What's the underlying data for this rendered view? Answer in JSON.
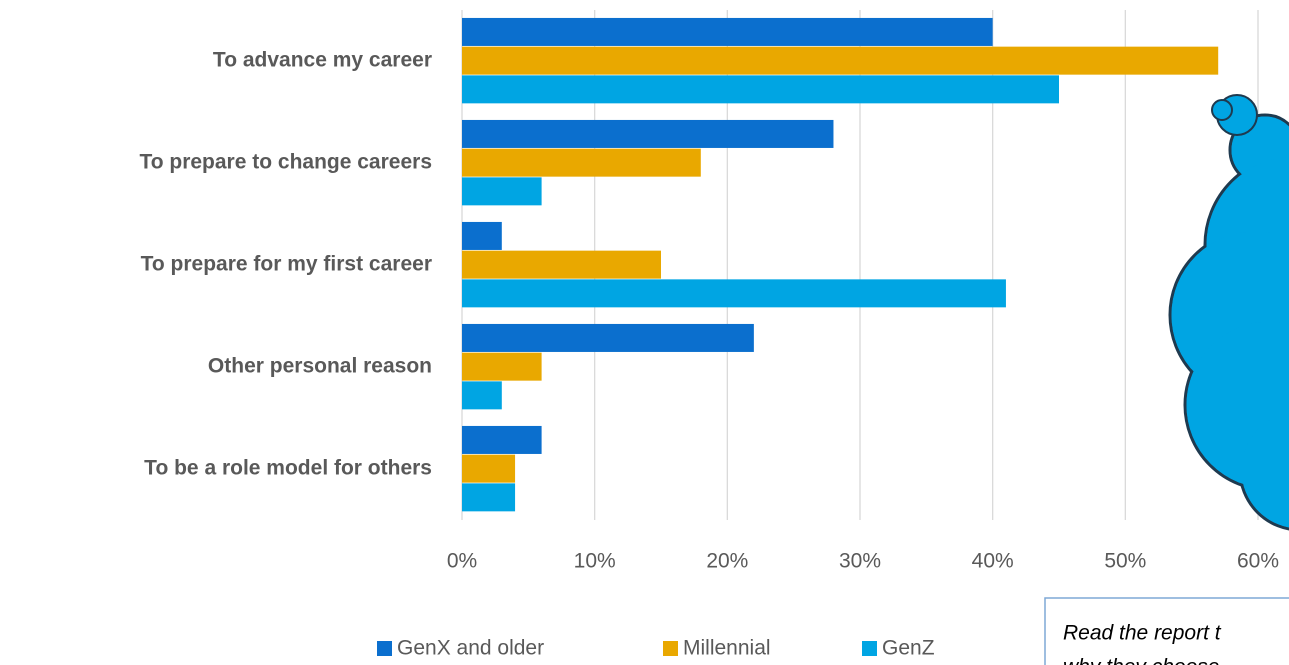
{
  "chart_data": {
    "type": "bar",
    "orientation": "horizontal",
    "categories": [
      "To advance my career",
      "To prepare to change careers",
      "To prepare for my first career",
      "Other personal reason",
      "To be a role model for others"
    ],
    "series": [
      {
        "name": "GenX and older",
        "color": "#0b6fce",
        "values": [
          40,
          28,
          3,
          22,
          6
        ]
      },
      {
        "name": "Millennial",
        "color": "#e9a800",
        "values": [
          57,
          18,
          15,
          6,
          4
        ]
      },
      {
        "name": "GenZ",
        "color": "#00a5e3",
        "values": [
          45,
          6,
          41,
          3,
          4
        ]
      }
    ],
    "xlim": [
      0,
      60
    ],
    "xticks": [
      {
        "value": 0,
        "label": "0%"
      },
      {
        "value": 10,
        "label": "10%"
      },
      {
        "value": 20,
        "label": "20%"
      },
      {
        "value": 30,
        "label": "30%"
      },
      {
        "value": 40,
        "label": "40%"
      },
      {
        "value": 50,
        "label": "50%"
      },
      {
        "value": 60,
        "label": "60%"
      }
    ],
    "grid": true,
    "legend": "bottom",
    "annotations": [
      "Read the report t",
      "why they choose"
    ]
  }
}
